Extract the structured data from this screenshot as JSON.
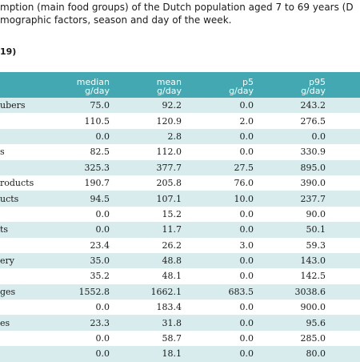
{
  "caption": {
    "line1": "mption (main food groups) of the  Dutch population aged 7 to 69 years (D",
    "line2": "mographic factors, season and day of the week.",
    "subhead": "19)"
  },
  "table": {
    "headers": [
      {
        "top": "median",
        "bottom": "g/day"
      },
      {
        "top": "mean",
        "bottom": "g/day"
      },
      {
        "top": "p5",
        "bottom": "g/day"
      },
      {
        "top": "p95",
        "bottom": "g/day"
      }
    ],
    "rows": [
      {
        "name": "ubers",
        "median": "75.0",
        "mean": "92.2",
        "p5": "0.0",
        "p95": "243.2"
      },
      {
        "name": "",
        "median": "110.5",
        "mean": "120.9",
        "p5": "2.0",
        "p95": "276.5"
      },
      {
        "name": "",
        "median": "0.0",
        "mean": "2.8",
        "p5": "0.0",
        "p95": "0.0"
      },
      {
        "name": "s",
        "median": "82.5",
        "mean": "112.0",
        "p5": "0.0",
        "p95": "330.9"
      },
      {
        "name": "",
        "median": "325.3",
        "mean": "377.7",
        "p5": "27.5",
        "p95": "895.0"
      },
      {
        "name": "roducts",
        "median": "190.7",
        "mean": "205.8",
        "p5": "76.0",
        "p95": "390.0"
      },
      {
        "name": "ucts",
        "median": "94.5",
        "mean": "107.1",
        "p5": "10.0",
        "p95": "237.7"
      },
      {
        "name": "",
        "median": "0.0",
        "mean": "15.2",
        "p5": "0.0",
        "p95": "90.0"
      },
      {
        "name": "ts",
        "median": "0.0",
        "mean": "11.7",
        "p5": "0.0",
        "p95": "50.1"
      },
      {
        "name": "",
        "median": "23.4",
        "mean": "26.2",
        "p5": "3.0",
        "p95": "59.3"
      },
      {
        "name": "ery",
        "median": "35.0",
        "mean": "48.8",
        "p5": "0.0",
        "p95": "143.0"
      },
      {
        "name": "",
        "median": "35.2",
        "mean": "48.1",
        "p5": "0.0",
        "p95": "142.5"
      },
      {
        "name": "ges",
        "median": "1552.8",
        "mean": "1662.1",
        "p5": "683.5",
        "p95": "3038.6"
      },
      {
        "name": "",
        "median": "0.0",
        "mean": "183.4",
        "p5": "0.0",
        "p95": "900.0"
      },
      {
        "name": "es",
        "median": "23.3",
        "mean": "31.8",
        "p5": "0.0",
        "p95": "95.6"
      },
      {
        "name": "",
        "median": "0.0",
        "mean": "58.7",
        "p5": "0.0",
        "p95": "285.0"
      },
      {
        "name": "",
        "median": "0.0",
        "mean": "18.1",
        "p5": "0.0",
        "p95": "80.0"
      }
    ]
  }
}
